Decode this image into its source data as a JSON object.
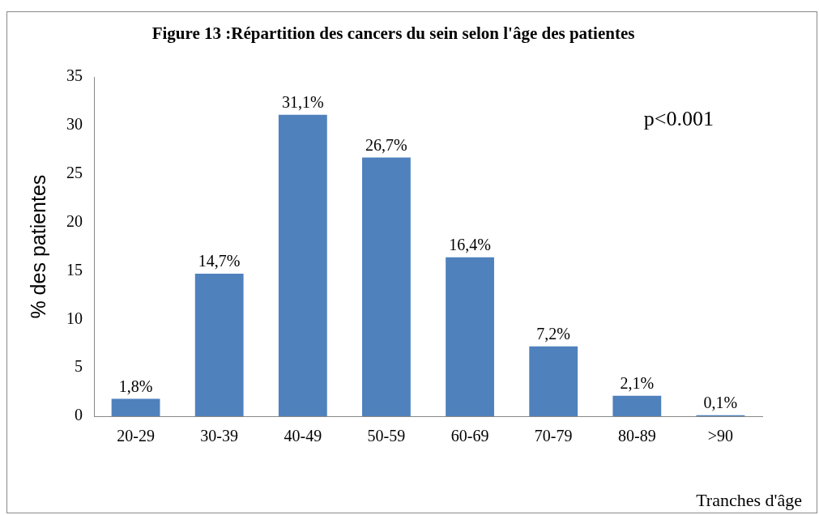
{
  "chart_data": {
    "type": "bar",
    "title": "Figure 13 :Répartition des cancers du sein selon l'âge des patientes",
    "xlabel": "Tranches d'âge",
    "ylabel": "% des patientes",
    "categories": [
      "20-29",
      "30-39",
      "40-49",
      "50-59",
      "60-69",
      "70-79",
      "80-89",
      ">90"
    ],
    "values": [
      1.8,
      14.7,
      31.1,
      26.7,
      16.4,
      7.2,
      2.1,
      0.1
    ],
    "value_labels": [
      "1,8%",
      "14,7%",
      "31,1%",
      "26,7%",
      "16,4%",
      "7,2%",
      "2,1%",
      "0,1%"
    ],
    "color": "#4f81bd",
    "ylim": [
      0,
      35
    ],
    "yticks": [
      0,
      5,
      10,
      15,
      20,
      25,
      30,
      35
    ],
    "grid": false,
    "legend": false,
    "annotations": [
      "p<0.001"
    ]
  }
}
